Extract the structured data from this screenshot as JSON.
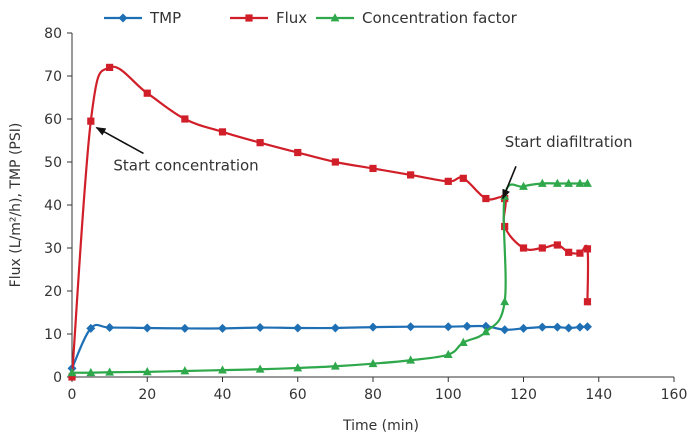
{
  "chart_data": {
    "type": "line",
    "title": "",
    "xlabel": "Time (min)",
    "ylabel": "Flux (L/m²/h), TMP (PSI)",
    "xlim": [
      0,
      160
    ],
    "ylim": [
      0,
      80
    ],
    "x_ticks": [
      0,
      20,
      40,
      60,
      80,
      100,
      120,
      140,
      160
    ],
    "y_ticks": [
      0,
      10,
      20,
      30,
      40,
      50,
      60,
      70,
      80
    ],
    "grid": false,
    "legend_position": "top",
    "series": [
      {
        "name": "TMP",
        "color": "#1f6fb5",
        "marker": "diamond",
        "points": [
          [
            0,
            2
          ],
          [
            5,
            11.3
          ],
          [
            10,
            11.5
          ],
          [
            20,
            11.4
          ],
          [
            30,
            11.3
          ],
          [
            40,
            11.3
          ],
          [
            50,
            11.5
          ],
          [
            60,
            11.4
          ],
          [
            70,
            11.4
          ],
          [
            80,
            11.6
          ],
          [
            90,
            11.7
          ],
          [
            100,
            11.7
          ],
          [
            105,
            11.8
          ],
          [
            110,
            11.8
          ],
          [
            115,
            11.0
          ],
          [
            120,
            11.3
          ],
          [
            125,
            11.6
          ],
          [
            129,
            11.6
          ],
          [
            132,
            11.4
          ],
          [
            135,
            11.6
          ],
          [
            137,
            11.7
          ]
        ]
      },
      {
        "name": "Flux",
        "color": "#d11f2a",
        "marker": "square",
        "points": [
          [
            0,
            0
          ],
          [
            5,
            59.5
          ],
          [
            10,
            72
          ],
          [
            20,
            66
          ],
          [
            30,
            60
          ],
          [
            40,
            57
          ],
          [
            50,
            54.5
          ],
          [
            60,
            52.2
          ],
          [
            70,
            50
          ],
          [
            80,
            48.5
          ],
          [
            90,
            47
          ],
          [
            100,
            45.5
          ],
          [
            104,
            46.2
          ],
          [
            110,
            41.5
          ],
          [
            115,
            41.5
          ],
          [
            115,
            35
          ],
          [
            120,
            30
          ],
          [
            125,
            30
          ],
          [
            129,
            30.7
          ],
          [
            132,
            29
          ],
          [
            135,
            28.8
          ],
          [
            137,
            29.8
          ],
          [
            137,
            17.5
          ]
        ]
      },
      {
        "name": "Concentration factor",
        "color": "#2ea84a",
        "marker": "triangle",
        "points": [
          [
            0,
            1
          ],
          [
            5,
            1
          ],
          [
            10,
            1.1
          ],
          [
            20,
            1.2
          ],
          [
            30,
            1.4
          ],
          [
            40,
            1.6
          ],
          [
            50,
            1.8
          ],
          [
            60,
            2.1
          ],
          [
            70,
            2.5
          ],
          [
            80,
            3.1
          ],
          [
            90,
            3.9
          ],
          [
            100,
            5.2
          ],
          [
            104,
            8
          ],
          [
            110,
            10.5
          ],
          [
            115,
            17.5
          ],
          [
            115,
            42
          ],
          [
            120,
            44.3
          ],
          [
            125,
            45
          ],
          [
            129,
            45
          ],
          [
            132,
            45
          ],
          [
            135,
            45
          ],
          [
            137,
            45
          ]
        ]
      }
    ],
    "annotations": [
      {
        "text": "Start concentration",
        "label_at": [
          11,
          48
        ],
        "arrow_from": [
          19,
          52
        ],
        "arrow_to": [
          6.5,
          58
        ]
      },
      {
        "text": "Start diafiltration",
        "label_at": [
          115,
          53.5
        ],
        "arrow_from": [
          118,
          49
        ],
        "arrow_to": [
          114.5,
          41.5
        ]
      }
    ]
  }
}
